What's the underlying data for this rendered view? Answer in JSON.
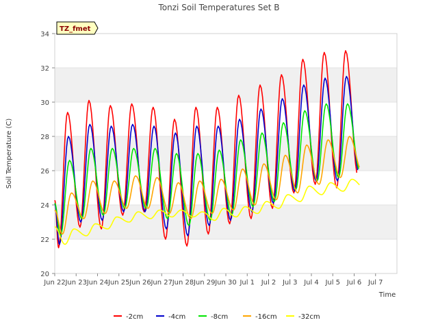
{
  "chart_data": {
    "type": "line",
    "title": "Tonzi Soil Temperatures Set B",
    "xlabel": "Time",
    "ylabel": "Soil Temperature (C)",
    "ylim": [
      20,
      34
    ],
    "yticks": [
      20,
      22,
      24,
      26,
      28,
      30,
      32,
      34
    ],
    "xlim": [
      0,
      16
    ],
    "xtick_labels": [
      "Jun 22",
      "Jun 23",
      "Jun 24",
      "Jun 25",
      "Jun 26",
      "Jun 27",
      "Jun 28",
      "Jun 29",
      "Jun 30",
      "Jul 1",
      "Jul 2",
      "Jul 3",
      "Jul 4",
      "Jul 5",
      "Jul 6",
      "Jul 7"
    ],
    "badge": "TZ_fmet",
    "grid": "horizontal bands",
    "legend_position": "bottom",
    "series": [
      {
        "name": "-2cm",
        "color": "#ff0000",
        "mins": [
          21.5,
          22.7,
          22.6,
          23.4,
          23.6,
          22.0,
          21.6,
          22.3,
          22.9,
          23.2,
          23.8,
          24.7,
          25.2,
          25.0,
          25.7
        ],
        "maxs": [
          29.4,
          30.1,
          29.8,
          29.9,
          29.7,
          29.0,
          29.7,
          29.7,
          30.4,
          31.0,
          31.6,
          32.5,
          32.9,
          33.0
        ]
      },
      {
        "name": "-4cm",
        "color": "#0000cc",
        "mins": [
          21.7,
          23.0,
          23.1,
          23.6,
          23.6,
          22.6,
          22.2,
          22.8,
          23.1,
          23.6,
          24.1,
          24.8,
          25.4,
          25.4,
          25.9
        ],
        "maxs": [
          28.0,
          28.7,
          28.6,
          28.7,
          28.6,
          28.2,
          28.6,
          28.6,
          29.0,
          29.6,
          30.2,
          31.0,
          31.4,
          31.5
        ]
      },
      {
        "name": "-8cm",
        "color": "#00e600",
        "mins": [
          22.2,
          23.2,
          23.4,
          23.8,
          23.8,
          23.2,
          22.8,
          23.1,
          23.4,
          23.9,
          24.2,
          24.9,
          25.4,
          25.6,
          26.0
        ],
        "maxs": [
          26.6,
          27.3,
          27.3,
          27.3,
          27.3,
          27.0,
          27.0,
          27.2,
          27.8,
          28.2,
          28.8,
          29.5,
          29.9,
          29.9
        ]
      },
      {
        "name": "-16cm",
        "color": "#ffa500",
        "mins": [
          22.3,
          23.2,
          23.5,
          23.8,
          23.8,
          23.5,
          23.2,
          23.5,
          23.7,
          24.0,
          24.3,
          24.7,
          25.2,
          25.6,
          26.0
        ],
        "maxs": [
          24.7,
          25.4,
          25.4,
          25.7,
          25.6,
          25.3,
          25.4,
          25.5,
          26.1,
          26.4,
          26.9,
          27.5,
          27.8,
          28.0
        ]
      },
      {
        "name": "-32cm",
        "color": "#ffff00",
        "mins": [
          21.7,
          22.2,
          22.6,
          23.0,
          23.2,
          23.3,
          23.3,
          23.1,
          23.3,
          23.5,
          23.8,
          24.2,
          24.6,
          24.8,
          25.0
        ],
        "maxs": [
          22.6,
          22.9,
          23.3,
          23.6,
          23.7,
          23.7,
          23.6,
          23.8,
          23.9,
          24.2,
          24.6,
          25.1,
          25.3,
          25.5
        ]
      }
    ],
    "series_end_x": 14.3
  }
}
